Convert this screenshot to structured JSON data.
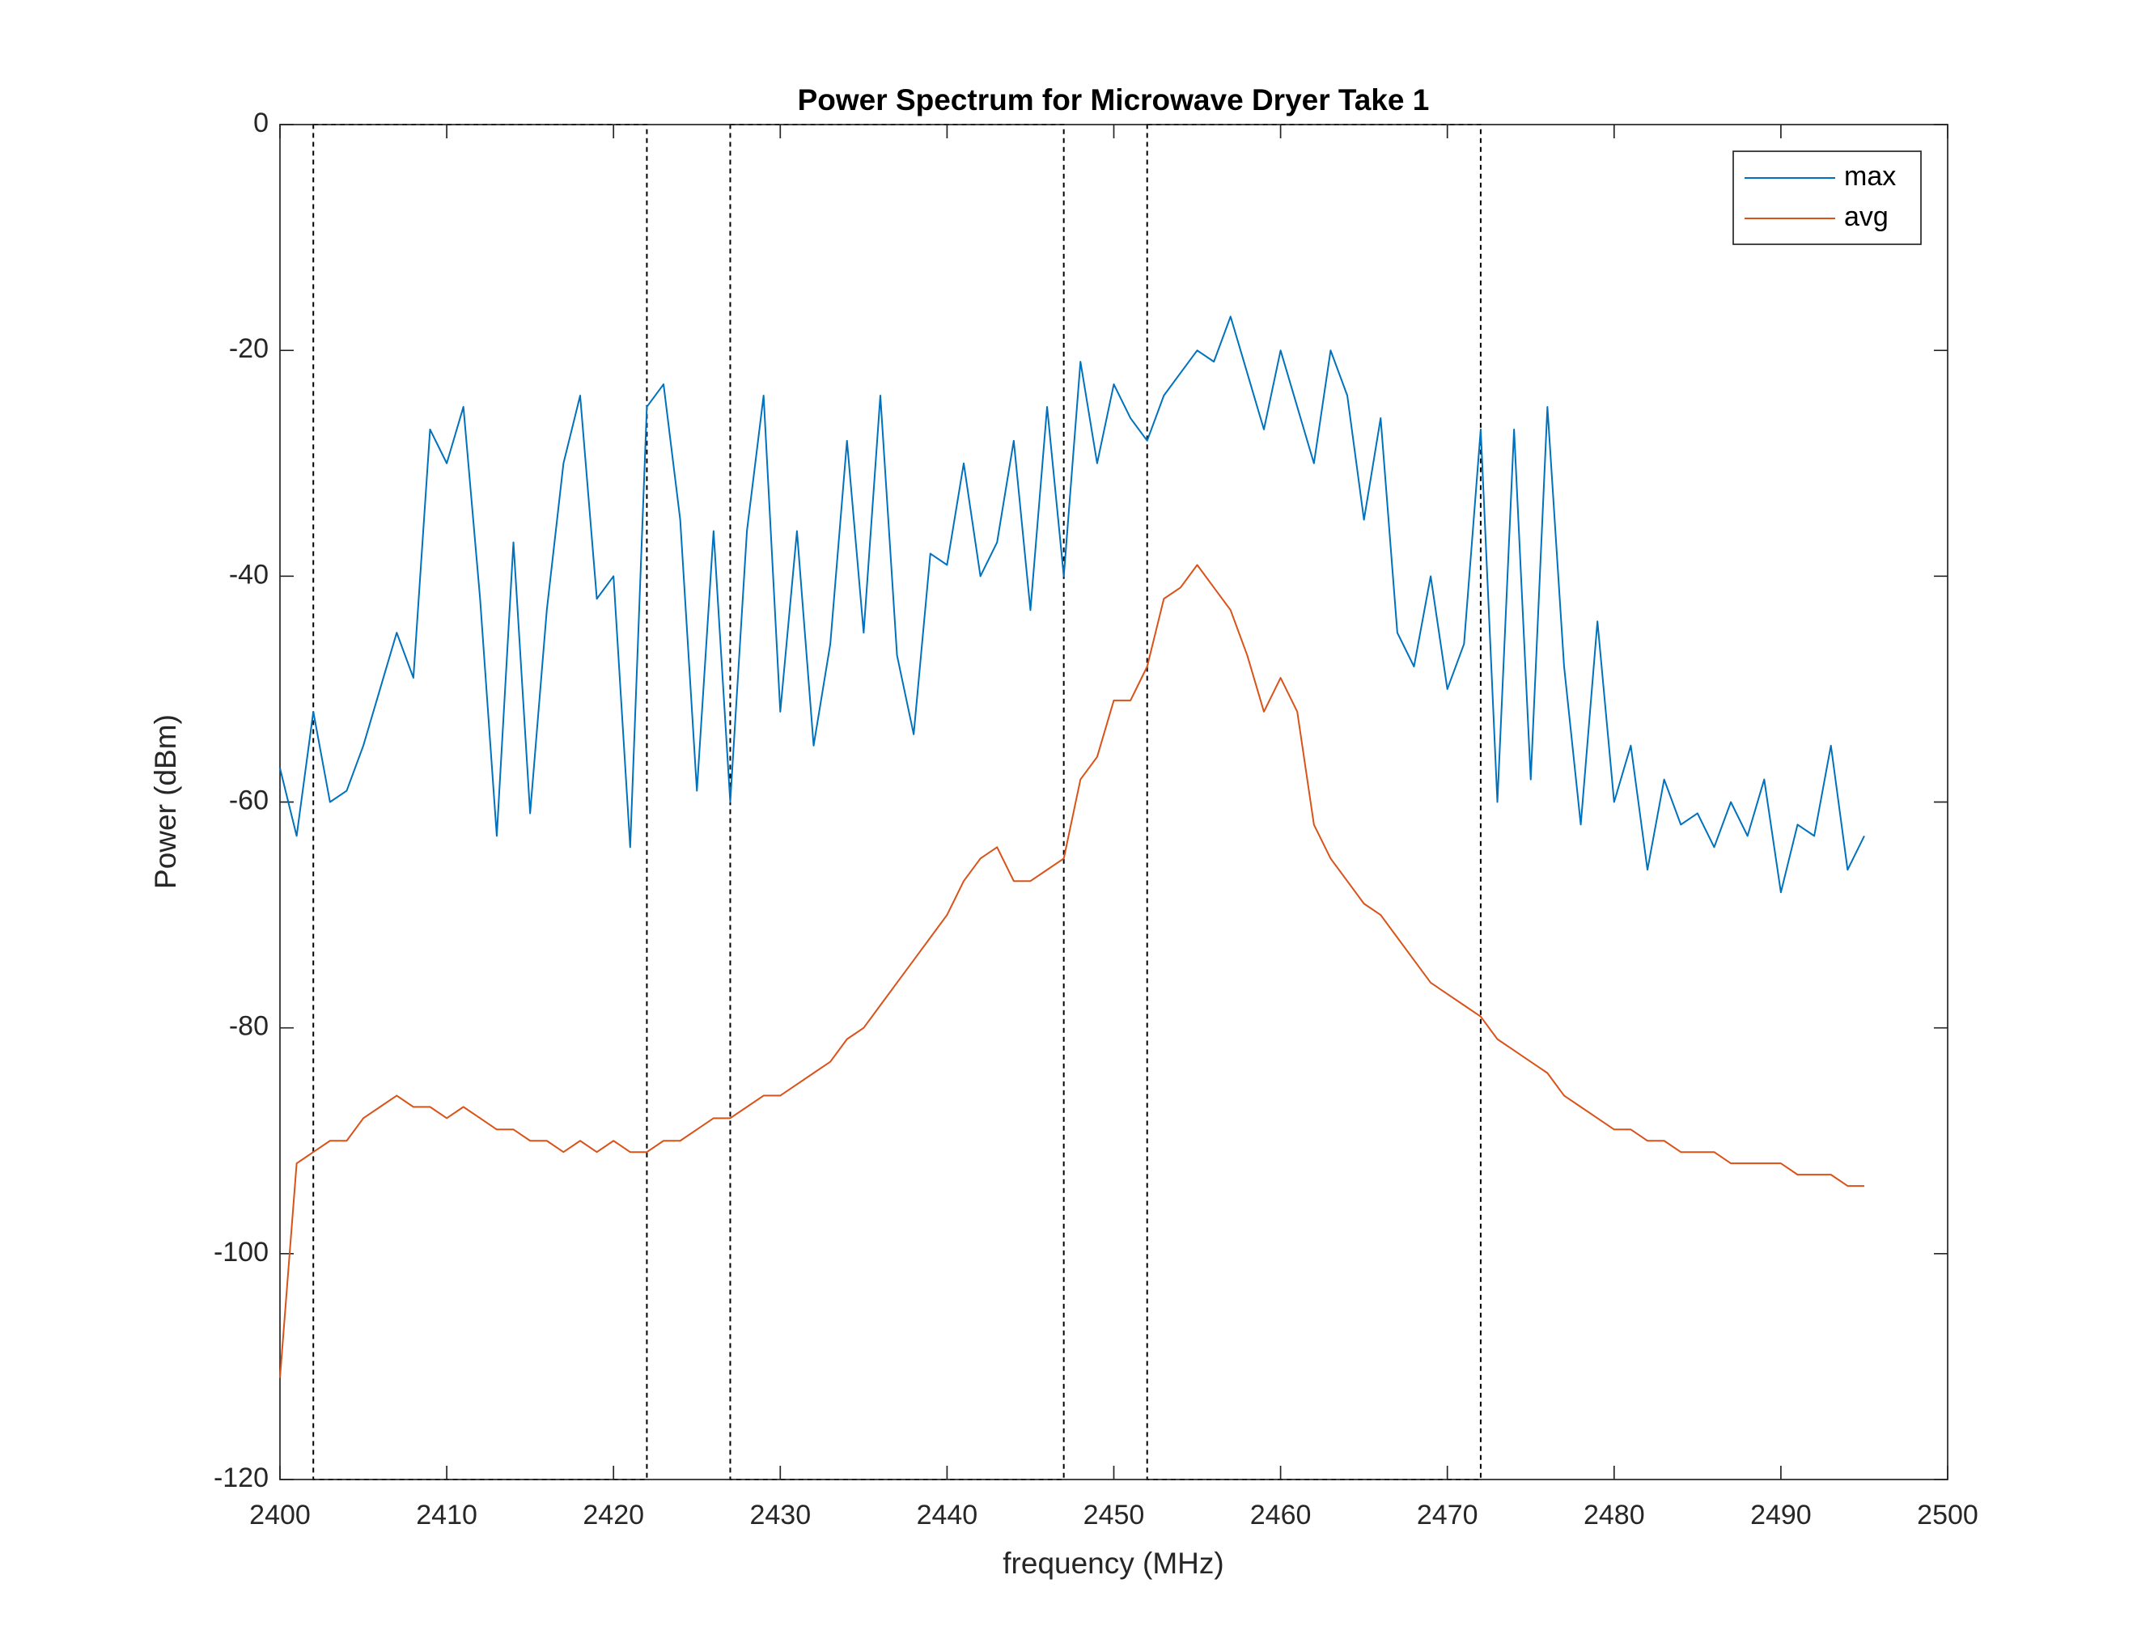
{
  "chart_data": {
    "type": "line",
    "title": "Power Spectrum for Microwave Dryer Take 1",
    "xlabel": "frequency (MHz)",
    "ylabel": "Power (dBm)",
    "xlim": [
      2400,
      2500
    ],
    "ylim": [
      -120,
      0
    ],
    "xticks": [
      2400,
      2410,
      2420,
      2430,
      2440,
      2450,
      2460,
      2470,
      2480,
      2490,
      2500
    ],
    "yticks": [
      -120,
      -100,
      -80,
      -60,
      -40,
      -20,
      0
    ],
    "grid": false,
    "legend": "northeast",
    "bands": [
      [
        2402,
        2422
      ],
      [
        2427,
        2447
      ],
      [
        2452,
        2472
      ]
    ],
    "x": [
      2400,
      2401,
      2402,
      2403,
      2404,
      2405,
      2406,
      2407,
      2408,
      2409,
      2410,
      2411,
      2412,
      2413,
      2414,
      2415,
      2416,
      2417,
      2418,
      2419,
      2420,
      2421,
      2422,
      2423,
      2424,
      2425,
      2426,
      2427,
      2428,
      2429,
      2430,
      2431,
      2432,
      2433,
      2434,
      2435,
      2436,
      2437,
      2438,
      2439,
      2440,
      2441,
      2442,
      2443,
      2444,
      2445,
      2446,
      2447,
      2448,
      2449,
      2450,
      2451,
      2452,
      2453,
      2454,
      2455,
      2456,
      2457,
      2458,
      2459,
      2460,
      2461,
      2462,
      2463,
      2464,
      2465,
      2466,
      2467,
      2468,
      2469,
      2470,
      2471,
      2472,
      2473,
      2474,
      2475,
      2476,
      2477,
      2478,
      2479,
      2480,
      2481,
      2482,
      2483,
      2484,
      2485,
      2486,
      2487,
      2488,
      2489,
      2490,
      2491,
      2492,
      2493,
      2494,
      2495
    ],
    "series": [
      {
        "name": "max",
        "color": "#0072bd",
        "values": [
          -57,
          -63,
          -52,
          -60,
          -59,
          -55,
          -50,
          -45,
          -49,
          -27,
          -30,
          -25,
          -42,
          -63,
          -37,
          -61,
          -43,
          -30,
          -24,
          -42,
          -40,
          -64,
          -25,
          -23,
          -35,
          -59,
          -36,
          -60,
          -36,
          -24,
          -52,
          -36,
          -55,
          -46,
          -28,
          -45,
          -24,
          -47,
          -54,
          -38,
          -39,
          -30,
          -40,
          -37,
          -28,
          -43,
          -25,
          -40,
          -21,
          -30,
          -23,
          -26,
          -28,
          -24,
          -22,
          -20,
          -21,
          -17,
          -22,
          -27,
          -20,
          -25,
          -30,
          -20,
          -24,
          -35,
          -26,
          -45,
          -48,
          -40,
          -50,
          -46,
          -27,
          -60,
          -27,
          -58,
          -25,
          -48,
          -62,
          -44,
          -60,
          -55,
          -66,
          -58,
          -62,
          -61,
          -64,
          -60,
          -63,
          -58,
          -68,
          -62,
          -63,
          -55,
          -66,
          -63
        ]
      },
      {
        "name": "avg",
        "color": "#d95319",
        "values": [
          -111,
          -92,
          -91,
          -90,
          -90,
          -88,
          -87,
          -86,
          -87,
          -87,
          -88,
          -87,
          -88,
          -89,
          -89,
          -90,
          -90,
          -91,
          -90,
          -91,
          -90,
          -91,
          -91,
          -90,
          -90,
          -89,
          -88,
          -88,
          -87,
          -86,
          -86,
          -85,
          -84,
          -83,
          -81,
          -80,
          -78,
          -76,
          -74,
          -72,
          -70,
          -67,
          -65,
          -64,
          -67,
          -67,
          -66,
          -65,
          -58,
          -56,
          -51,
          -51,
          -48,
          -42,
          -41,
          -39,
          -41,
          -43,
          -47,
          -52,
          -49,
          -52,
          -62,
          -65,
          -67,
          -69,
          -70,
          -72,
          -74,
          -76,
          -77,
          -78,
          -79,
          -81,
          -82,
          -83,
          -84,
          -86,
          -87,
          -88,
          -89,
          -89,
          -90,
          -90,
          -91,
          -91,
          -91,
          -92,
          -92,
          -92,
          -92,
          -93,
          -93,
          -93,
          -94,
          -94
        ]
      }
    ]
  }
}
